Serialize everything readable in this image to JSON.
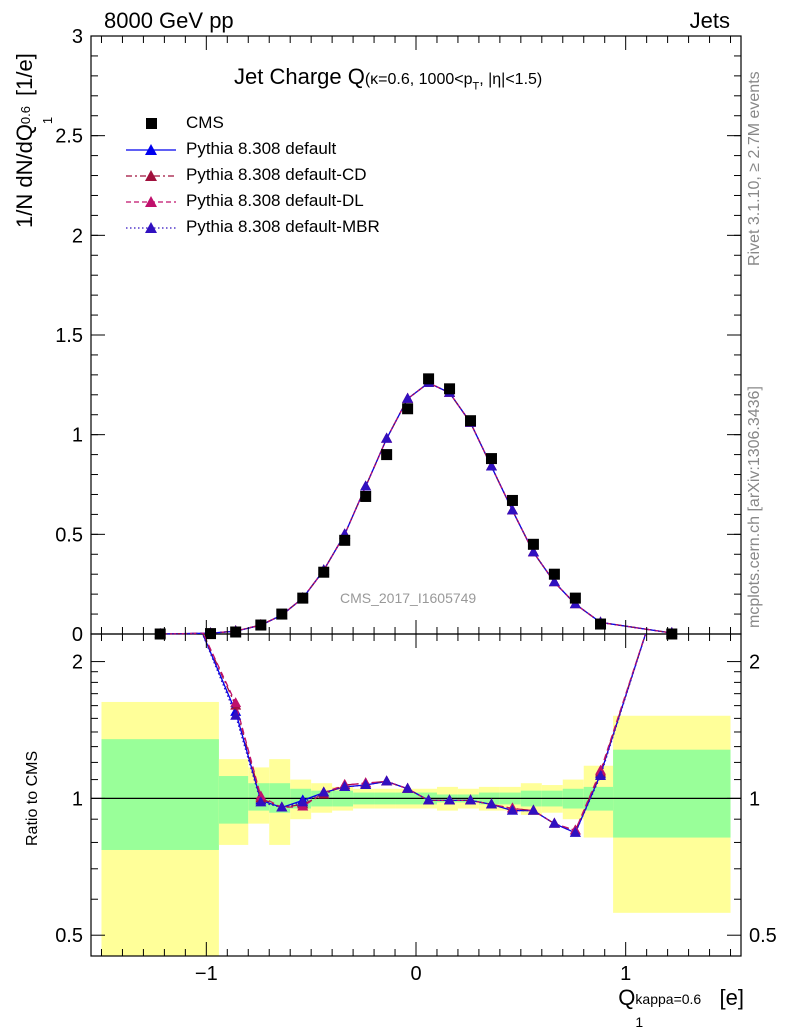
{
  "header": {
    "energy_label": "8000 GeV pp",
    "category_label": "Jets",
    "rivet_label": "Rivet 3.1.10, ≥ 2.7M events",
    "mcplots_label": "mcplots.cern.ch [arXiv:1306.3436]",
    "analysis_label": "CMS_2017_I1605749"
  },
  "chart_data": [
    {
      "type": "line",
      "panel": "main",
      "title_main": "Jet Charge Q",
      "title_sub": "(κ=0.6, 1000<p",
      "title_sub_sub": "T",
      "title_sub_tail": ", |η|<1.5)",
      "ylabel_main": "1/N dN/dQ",
      "ylabel_sup": "0.6",
      "ylabel_subscript": "1",
      "ylabel_tail": " [1/e]",
      "xlim": [
        -1.55,
        1.55
      ],
      "ylim": [
        0,
        3
      ],
      "yticks": [
        0,
        0.5,
        1,
        1.5,
        2,
        2.5,
        3
      ],
      "ytick_labels": [
        "0",
        "0.5",
        "1",
        "1.5",
        "2",
        "2.5",
        "3"
      ],
      "data": {
        "name": "CMS",
        "x": [
          -1.22,
          -0.98,
          -0.86,
          -0.74,
          -0.64,
          -0.54,
          -0.44,
          -0.34,
          -0.24,
          -0.14,
          -0.04,
          0.06,
          0.16,
          0.26,
          0.36,
          0.46,
          0.56,
          0.66,
          0.76,
          0.88,
          1.22
        ],
        "y": [
          0.0,
          0.002,
          0.01,
          0.045,
          0.1,
          0.18,
          0.31,
          0.47,
          0.69,
          0.9,
          1.13,
          1.28,
          1.23,
          1.07,
          0.88,
          0.67,
          0.45,
          0.3,
          0.18,
          0.05,
          0.0
        ]
      },
      "series": [
        {
          "name": "Pythia 8.308 default",
          "color": "#0000ee",
          "dash": "solid",
          "marker": "triangle",
          "x": [
            -1.22,
            -0.98,
            -0.86,
            -0.74,
            -0.64,
            -0.54,
            -0.44,
            -0.34,
            -0.24,
            -0.14,
            -0.04,
            0.06,
            0.16,
            0.26,
            0.36,
            0.46,
            0.56,
            0.66,
            0.76,
            0.88,
            1.22
          ],
          "y": [
            0.0,
            0.004,
            0.014,
            0.044,
            0.095,
            0.18,
            0.32,
            0.5,
            0.74,
            0.98,
            1.18,
            1.26,
            1.21,
            1.06,
            0.84,
            0.62,
            0.41,
            0.26,
            0.15,
            0.058,
            0.005
          ]
        },
        {
          "name": "Pythia 8.308 default-CD",
          "color": "#a0103c",
          "dash": "dashdot",
          "marker": "triangle",
          "x": [
            -1.22,
            -0.98,
            -0.86,
            -0.74,
            -0.64,
            -0.54,
            -0.44,
            -0.34,
            -0.24,
            -0.14,
            -0.04,
            0.06,
            0.16,
            0.26,
            0.36,
            0.46,
            0.56,
            0.66,
            0.76,
            0.88,
            1.22
          ],
          "y": [
            0.0,
            0.004,
            0.015,
            0.045,
            0.095,
            0.18,
            0.32,
            0.5,
            0.74,
            0.98,
            1.18,
            1.26,
            1.21,
            1.06,
            0.84,
            0.62,
            0.41,
            0.26,
            0.15,
            0.058,
            0.005
          ]
        },
        {
          "name": "Pythia 8.308 default-DL",
          "color": "#c0106c",
          "dash": "dashed",
          "marker": "triangle",
          "x": [
            -1.22,
            -0.98,
            -0.86,
            -0.74,
            -0.64,
            -0.54,
            -0.44,
            -0.34,
            -0.24,
            -0.14,
            -0.04,
            0.06,
            0.16,
            0.26,
            0.36,
            0.46,
            0.56,
            0.66,
            0.76,
            0.88,
            1.22
          ],
          "y": [
            0.0,
            0.004,
            0.015,
            0.045,
            0.095,
            0.18,
            0.32,
            0.5,
            0.74,
            0.98,
            1.18,
            1.26,
            1.21,
            1.06,
            0.84,
            0.62,
            0.41,
            0.26,
            0.15,
            0.058,
            0.005
          ]
        },
        {
          "name": "Pythia 8.308 default-MBR",
          "color": "#3010c0",
          "dash": "dotted",
          "marker": "triangle",
          "x": [
            -1.22,
            -0.98,
            -0.86,
            -0.74,
            -0.64,
            -0.54,
            -0.44,
            -0.34,
            -0.24,
            -0.14,
            -0.04,
            0.06,
            0.16,
            0.26,
            0.36,
            0.46,
            0.56,
            0.66,
            0.76,
            0.88,
            1.22
          ],
          "y": [
            0.0,
            0.004,
            0.014,
            0.044,
            0.095,
            0.18,
            0.32,
            0.5,
            0.74,
            0.98,
            1.18,
            1.26,
            1.21,
            1.06,
            0.84,
            0.62,
            0.41,
            0.26,
            0.15,
            0.058,
            0.005
          ]
        }
      ]
    },
    {
      "type": "line",
      "panel": "ratio",
      "ylabel": "Ratio to CMS",
      "xlabel_main": "Q",
      "xlabel_sub": "1",
      "xlabel_sup": "kappa=0.6",
      "xlabel_tail": " [e]",
      "xlim": [
        -1.55,
        1.55
      ],
      "ylim": [
        0.45,
        2.3
      ],
      "log_y": true,
      "yticks": [
        0.5,
        1,
        2
      ],
      "ytick_labels": [
        "0.5",
        "1",
        "2"
      ],
      "xticks": [
        -1,
        0,
        1
      ],
      "xtick_labels": [
        "−1",
        "0",
        "1"
      ],
      "bands": {
        "edges": [
          -1.5,
          -0.94,
          -0.8,
          -0.7,
          -0.6,
          -0.5,
          -0.4,
          -0.3,
          -0.2,
          -0.1,
          0.0,
          0.1,
          0.2,
          0.3,
          0.4,
          0.5,
          0.6,
          0.7,
          0.8,
          0.94,
          1.5
        ],
        "green_low": [
          0.77,
          0.88,
          0.94,
          0.93,
          0.95,
          0.96,
          0.96,
          0.97,
          0.97,
          0.97,
          0.97,
          0.98,
          0.98,
          0.97,
          0.97,
          0.96,
          0.96,
          0.95,
          0.94,
          0.82
        ],
        "green_high": [
          1.35,
          1.12,
          1.08,
          1.08,
          1.05,
          1.04,
          1.04,
          1.03,
          1.03,
          1.03,
          1.03,
          1.02,
          1.02,
          1.03,
          1.03,
          1.04,
          1.04,
          1.05,
          1.06,
          1.28
        ],
        "yellow_low": [
          0.41,
          0.79,
          0.88,
          0.79,
          0.9,
          0.93,
          0.94,
          0.95,
          0.95,
          0.95,
          0.95,
          0.94,
          0.95,
          0.94,
          0.94,
          0.92,
          0.93,
          0.9,
          0.82,
          0.56
        ],
        "yellow_high": [
          1.63,
          1.22,
          1.17,
          1.22,
          1.1,
          1.08,
          1.06,
          1.05,
          1.05,
          1.05,
          1.05,
          1.06,
          1.05,
          1.06,
          1.06,
          1.08,
          1.07,
          1.1,
          1.18,
          1.52
        ]
      },
      "series": [
        {
          "name": "Pythia 8.308 default",
          "color": "#0000ee",
          "dash": "solid",
          "x": [
            -1.05,
            -0.86,
            -0.74,
            -0.64,
            -0.54,
            -0.44,
            -0.34,
            -0.24,
            -0.14,
            -0.04,
            0.06,
            0.16,
            0.26,
            0.36,
            0.46,
            0.56,
            0.66,
            0.76,
            0.88,
            1.12
          ],
          "y": [
            2.5,
            1.55,
            0.99,
            0.955,
            0.99,
            1.03,
            1.06,
            1.07,
            1.09,
            1.05,
            0.99,
            0.99,
            0.99,
            0.97,
            0.94,
            0.94,
            0.88,
            0.84,
            1.13,
            2.5
          ]
        },
        {
          "name": "Pythia 8.308 default-CD",
          "color": "#a0103c",
          "dash": "dashdot",
          "x": [
            -1.05,
            -0.86,
            -0.74,
            -0.64,
            -0.54,
            -0.44,
            -0.34,
            -0.24,
            -0.14,
            -0.04,
            0.06,
            0.16,
            0.26,
            0.36,
            0.46,
            0.56,
            0.66,
            0.76,
            0.88,
            1.12
          ],
          "y": [
            2.5,
            1.6,
            1.0,
            0.955,
            0.97,
            1.02,
            1.07,
            1.08,
            1.09,
            1.05,
            0.99,
            0.99,
            0.99,
            0.97,
            0.95,
            0.94,
            0.88,
            0.85,
            1.14,
            2.5
          ]
        },
        {
          "name": "Pythia 8.308 default-DL",
          "color": "#c0106c",
          "dash": "dashed",
          "x": [
            -1.05,
            -0.86,
            -0.74,
            -0.64,
            -0.54,
            -0.44,
            -0.34,
            -0.24,
            -0.14,
            -0.04,
            0.06,
            0.16,
            0.26,
            0.36,
            0.46,
            0.56,
            0.66,
            0.76,
            0.88,
            1.12
          ],
          "y": [
            2.5,
            1.62,
            1.01,
            0.955,
            0.96,
            1.03,
            1.07,
            1.08,
            1.09,
            1.05,
            0.99,
            0.99,
            0.99,
            0.97,
            0.95,
            0.94,
            0.88,
            0.85,
            1.15,
            2.5
          ]
        },
        {
          "name": "Pythia 8.308 default-MBR",
          "color": "#3010c0",
          "dash": "dotted",
          "x": [
            -1.05,
            -0.86,
            -0.74,
            -0.64,
            -0.54,
            -0.44,
            -0.34,
            -0.24,
            -0.14,
            -0.04,
            0.06,
            0.16,
            0.26,
            0.36,
            0.46,
            0.56,
            0.66,
            0.76,
            0.88,
            1.12
          ],
          "y": [
            2.5,
            1.52,
            0.98,
            0.955,
            0.98,
            1.03,
            1.06,
            1.07,
            1.09,
            1.05,
            0.99,
            0.99,
            0.99,
            0.97,
            0.94,
            0.94,
            0.88,
            0.84,
            1.12,
            2.5
          ]
        }
      ]
    }
  ]
}
